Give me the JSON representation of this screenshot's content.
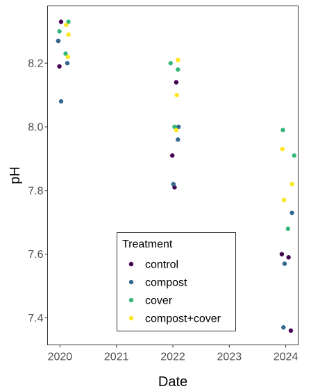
{
  "chart_data": {
    "type": "scatter",
    "xlabel": "Date",
    "ylabel": "pH",
    "xlim": [
      2019.78,
      2024.22
    ],
    "ylim": [
      7.315,
      8.38
    ],
    "x_ticks": [
      2020,
      2021,
      2022,
      2023,
      2024
    ],
    "x_tick_labels": [
      "2020",
      "2021",
      "2022",
      "2023",
      "2024"
    ],
    "y_ticks": [
      7.4,
      7.6,
      7.8,
      8.0,
      8.2
    ],
    "y_tick_labels": [
      "7.4",
      "7.6",
      "7.8",
      "8.0",
      "8.2"
    ],
    "grid": false,
    "legend": {
      "title": "Treatment",
      "placement": "bottom-center"
    },
    "series": [
      {
        "name": "control",
        "color": "#440154",
        "points": [
          {
            "x": 2019.97,
            "y": 8.27
          },
          {
            "x": 2019.99,
            "y": 8.19
          },
          {
            "x": 2020.02,
            "y": 8.33
          },
          {
            "x": 2021.99,
            "y": 7.91
          },
          {
            "x": 2022.03,
            "y": 7.81
          },
          {
            "x": 2022.06,
            "y": 8.14
          },
          {
            "x": 2023.93,
            "y": 7.6
          },
          {
            "x": 2024.05,
            "y": 7.59
          },
          {
            "x": 2024.09,
            "y": 7.36
          }
        ]
      },
      {
        "name": "compost",
        "color": "#31688e",
        "points": [
          {
            "x": 2019.97,
            "y": 8.27
          },
          {
            "x": 2020.02,
            "y": 8.08
          },
          {
            "x": 2020.13,
            "y": 8.2
          },
          {
            "x": 2022.01,
            "y": 7.82
          },
          {
            "x": 2022.09,
            "y": 7.96
          },
          {
            "x": 2022.1,
            "y": 8.0
          },
          {
            "x": 2023.96,
            "y": 7.37
          },
          {
            "x": 2023.98,
            "y": 7.57
          },
          {
            "x": 2024.11,
            "y": 7.73
          }
        ]
      },
      {
        "name": "cover",
        "color": "#35b779",
        "points": [
          {
            "x": 2019.99,
            "y": 8.3
          },
          {
            "x": 2020.1,
            "y": 8.23
          },
          {
            "x": 2020.15,
            "y": 8.33
          },
          {
            "x": 2021.96,
            "y": 8.2
          },
          {
            "x": 2022.03,
            "y": 8.0
          },
          {
            "x": 2022.09,
            "y": 8.18
          },
          {
            "x": 2023.95,
            "y": 7.99
          },
          {
            "x": 2024.04,
            "y": 7.68
          },
          {
            "x": 2024.15,
            "y": 7.91
          }
        ]
      },
      {
        "name": "compost+cover",
        "color": "#fde725",
        "points": [
          {
            "x": 2020.11,
            "y": 8.32
          },
          {
            "x": 2020.14,
            "y": 8.22
          },
          {
            "x": 2020.15,
            "y": 8.29
          },
          {
            "x": 2022.06,
            "y": 7.99
          },
          {
            "x": 2022.07,
            "y": 8.1
          },
          {
            "x": 2022.09,
            "y": 8.21
          },
          {
            "x": 2023.94,
            "y": 7.93
          },
          {
            "x": 2023.97,
            "y": 7.77
          },
          {
            "x": 2024.11,
            "y": 7.82
          }
        ]
      }
    ]
  }
}
